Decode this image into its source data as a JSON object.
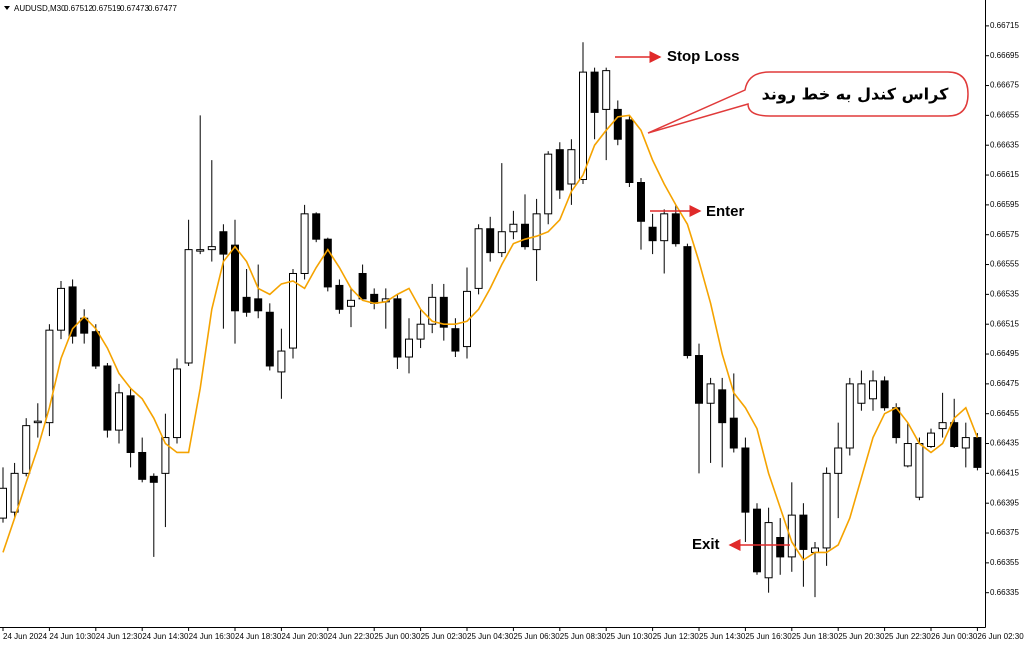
{
  "chart_data": {
    "type": "candlestick",
    "symbol": "AUDUSD,M30",
    "quote": [
      0.67512,
      0.67519,
      0.67473,
      0.67477
    ],
    "categories": [
      "24 Jun 2024",
      null,
      null,
      null,
      "24 Jun 10:30",
      null,
      null,
      null,
      "24 Jun 12:30",
      null,
      null,
      null,
      "24 Jun 14:30",
      null,
      null,
      null,
      "24 Jun 16:30",
      null,
      null,
      null,
      "24 Jun 18:30",
      null,
      null,
      null,
      "24 Jun 20:30",
      null,
      null,
      null,
      "24 Jun 22:30",
      null,
      null,
      null,
      "25 Jun 00:30",
      null,
      null,
      null,
      "25 Jun 02:30",
      null,
      null,
      null,
      "25 Jun 04:30",
      null,
      null,
      null,
      "25 Jun 06:30",
      null,
      null,
      null,
      "25 Jun 08:30",
      null,
      null,
      null,
      "25 Jun 10:30",
      null,
      null,
      null,
      "25 Jun 12:30",
      null,
      null,
      null,
      "25 Jun 14:30",
      null,
      null,
      null,
      "25 Jun 16:30",
      null,
      null,
      null,
      "25 Jun 18:30",
      null,
      null,
      null,
      "25 Jun 20:30",
      null,
      null,
      null,
      "25 Jun 22:30",
      null,
      null,
      null,
      "26 Jun 00:30",
      null,
      null,
      null,
      "26 Jun 02:30"
    ],
    "open": [
      0.66385,
      0.66389,
      0.66415,
      0.66449,
      0.66449,
      0.66511,
      0.6654,
      0.66519,
      0.6651,
      0.66487,
      0.66444,
      0.66467,
      0.66429,
      0.66413,
      0.66415,
      0.66439,
      0.66489,
      0.66564,
      0.66565,
      0.66577,
      0.66568,
      0.66533,
      0.66532,
      0.66523,
      0.66483,
      0.66499,
      0.66549,
      0.66589,
      0.66572,
      0.66541,
      0.66527,
      0.66549,
      0.66535,
      0.6653,
      0.66532,
      0.66493,
      0.66505,
      0.66515,
      0.66533,
      0.66512,
      0.665,
      0.66539,
      0.66579,
      0.66563,
      0.66577,
      0.66582,
      0.66565,
      0.66589,
      0.66632,
      0.66609,
      0.66612,
      0.66684,
      0.66659,
      0.66659,
      0.66652,
      0.6661,
      0.6658,
      0.66571,
      0.66589,
      0.66567,
      0.66494,
      0.66462,
      0.66471,
      0.66452,
      0.66432,
      0.66391,
      0.66345,
      0.66372,
      0.66359,
      0.66387,
      0.66362,
      0.66365,
      0.66415,
      0.66432,
      0.66462,
      0.66465,
      0.66477,
      0.66459,
      0.6642,
      0.66399,
      0.66433,
      0.66445,
      0.66449,
      0.66432,
      0.66439
    ],
    "high": [
      0.66419,
      0.66422,
      0.66452,
      0.66462,
      0.66515,
      0.66544,
      0.66545,
      0.66525,
      0.66515,
      0.66489,
      0.66475,
      0.66472,
      0.66439,
      0.66415,
      0.66455,
      0.66492,
      0.66585,
      0.66655,
      0.66625,
      0.66582,
      0.66585,
      0.66552,
      0.66555,
      0.66529,
      0.66512,
      0.66552,
      0.66595,
      0.6659,
      0.66573,
      0.66545,
      0.66539,
      0.66555,
      0.66539,
      0.66539,
      0.66535,
      0.66519,
      0.66525,
      0.66542,
      0.66542,
      0.66519,
      0.66553,
      0.66582,
      0.66587,
      0.66623,
      0.66591,
      0.66602,
      0.66599,
      0.66631,
      0.66637,
      0.66639,
      0.66704,
      0.66687,
      0.66687,
      0.66665,
      0.66655,
      0.66613,
      0.66589,
      0.66592,
      0.66595,
      0.66569,
      0.66502,
      0.66479,
      0.66479,
      0.66482,
      0.66439,
      0.66395,
      0.66392,
      0.66385,
      0.66409,
      0.66395,
      0.66369,
      0.66419,
      0.66449,
      0.66479,
      0.66484,
      0.66484,
      0.6648,
      0.66462,
      0.66449,
      0.66439,
      0.66445,
      0.66469,
      0.66465,
      0.66449,
      0.66442
    ],
    "low": [
      0.66382,
      0.66385,
      0.66413,
      0.66439,
      0.6644,
      0.66505,
      0.66502,
      0.66502,
      0.66485,
      0.66439,
      0.66435,
      0.66419,
      0.66409,
      0.66359,
      0.66379,
      0.66435,
      0.66487,
      0.66562,
      0.66557,
      0.66512,
      0.66502,
      0.6652,
      0.66519,
      0.66484,
      0.66465,
      0.66492,
      0.66545,
      0.6657,
      0.66537,
      0.66522,
      0.66513,
      0.66531,
      0.66525,
      0.66512,
      0.66485,
      0.66482,
      0.66499,
      0.66509,
      0.66504,
      0.66493,
      0.66492,
      0.66535,
      0.66557,
      0.6656,
      0.66572,
      0.66565,
      0.66544,
      0.66582,
      0.66599,
      0.66595,
      0.66609,
      0.66639,
      0.66625,
      0.66635,
      0.66607,
      0.66565,
      0.66562,
      0.66549,
      0.66567,
      0.66492,
      0.66415,
      0.66422,
      0.66419,
      0.66429,
      0.66369,
      0.66347,
      0.66335,
      0.66347,
      0.66349,
      0.66339,
      0.66332,
      0.66353,
      0.66385,
      0.66427,
      0.66457,
      0.66457,
      0.66457,
      0.66435,
      0.66419,
      0.66397,
      0.66432,
      0.66439,
      0.66432,
      0.66419,
      0.66417
    ],
    "close": [
      0.66405,
      0.66415,
      0.66447,
      0.6645,
      0.66511,
      0.66539,
      0.66507,
      0.66509,
      0.66487,
      0.66444,
      0.66469,
      0.66429,
      0.66411,
      0.66409,
      0.66439,
      0.66485,
      0.66565,
      0.66565,
      0.66567,
      0.66562,
      0.66524,
      0.66523,
      0.66524,
      0.66487,
      0.66497,
      0.66549,
      0.66589,
      0.66572,
      0.6654,
      0.66525,
      0.66531,
      0.66532,
      0.66529,
      0.66532,
      0.66493,
      0.66505,
      0.66515,
      0.66533,
      0.66513,
      0.66497,
      0.66537,
      0.66579,
      0.66563,
      0.66577,
      0.66582,
      0.66567,
      0.66589,
      0.66629,
      0.66605,
      0.66632,
      0.66684,
      0.66657,
      0.66685,
      0.66639,
      0.6661,
      0.66584,
      0.66571,
      0.66589,
      0.66569,
      0.66494,
      0.66462,
      0.66475,
      0.66449,
      0.66432,
      0.66389,
      0.66349,
      0.66382,
      0.66359,
      0.66387,
      0.66364,
      0.66365,
      0.66415,
      0.66432,
      0.66475,
      0.66475,
      0.66477,
      0.66459,
      0.66439,
      0.66435,
      0.66435,
      0.66442,
      0.66449,
      0.66433,
      0.66439,
      0.66419
    ],
    "up_color": "#ffffff",
    "down_color": "#000000",
    "ma": {
      "color": "#f5a300",
      "values": [
        0.66362,
        0.66385,
        0.66409,
        0.66432,
        0.66459,
        0.66492,
        0.66512,
        0.6652,
        0.66512,
        0.66499,
        0.66482,
        0.66472,
        0.66465,
        0.66452,
        0.66435,
        0.66429,
        0.66429,
        0.66472,
        0.66525,
        0.66557,
        0.66567,
        0.66557,
        0.66539,
        0.66535,
        0.66542,
        0.66544,
        0.66539,
        0.66553,
        0.66565,
        0.66553,
        0.66539,
        0.66531,
        0.66529,
        0.6653,
        0.66535,
        0.66539,
        0.66525,
        0.66517,
        0.66515,
        0.66515,
        0.66517,
        0.66525,
        0.66539,
        0.66555,
        0.66569,
        0.66572,
        0.66574,
        0.66577,
        0.66585,
        0.66604,
        0.66615,
        0.66635,
        0.66645,
        0.66654,
        0.66655,
        0.66645,
        0.66625,
        0.66609,
        0.66595,
        0.66582,
        0.66557,
        0.66529,
        0.66495,
        0.66469,
        0.66459,
        0.66445,
        0.66415,
        0.66392,
        0.66369,
        0.66357,
        0.66362,
        0.66362,
        0.66367,
        0.66385,
        0.66412,
        0.66439,
        0.66455,
        0.66459,
        0.66449,
        0.66435,
        0.66429,
        0.66435,
        0.66452,
        0.66459,
        0.66439
      ]
    },
    "ylim": [
      0.66312,
      0.66729
    ],
    "yticks": [
      0.66715,
      0.66695,
      0.66675,
      0.66655,
      0.66635,
      0.66615,
      0.66595,
      0.66575,
      0.66555,
      0.66535,
      0.66515,
      0.66495,
      0.66475,
      0.66455,
      0.66435,
      0.66415,
      0.66395,
      0.66375,
      0.66355,
      0.66335
    ],
    "annotations": [
      {
        "text": "Stop Loss",
        "color": "#f04848"
      },
      {
        "text": "Enter",
        "color": "#1f9a2c"
      },
      {
        "text": "Exit",
        "color": "#1f35d0"
      },
      {
        "text": "کراس کندل به خط روند",
        "color": "#000000"
      }
    ]
  }
}
